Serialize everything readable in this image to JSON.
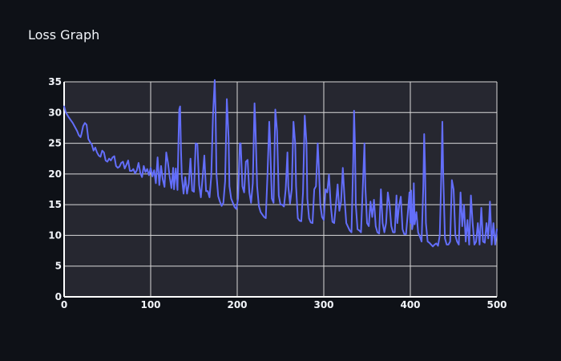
{
  "chart_data": {
    "type": "line",
    "title": "Loss Graph",
    "xlabel": "",
    "ylabel": "",
    "xlim": [
      0,
      500
    ],
    "ylim": [
      0,
      35
    ],
    "xticks": [
      0,
      100,
      200,
      300,
      400,
      500
    ],
    "yticks": [
      0,
      5,
      10,
      15,
      20,
      25,
      30,
      35
    ],
    "grid": true,
    "legend": "none",
    "colors": {
      "page_bg": "#0e1117",
      "plot_bg": "#262730",
      "grid": "#d9d9d9",
      "line": "#636efa",
      "text": "#f2f5fa"
    },
    "series": [
      {
        "points": [
          [
            0,
            31
          ],
          [
            2,
            30
          ],
          [
            5,
            29.3
          ],
          [
            10,
            28.3
          ],
          [
            15,
            27
          ],
          [
            17,
            26.3
          ],
          [
            19,
            26
          ],
          [
            20,
            26.5
          ],
          [
            22,
            27.8
          ],
          [
            24,
            28.3
          ],
          [
            26,
            28
          ],
          [
            28,
            25.7
          ],
          [
            30,
            25.2
          ],
          [
            32,
            24.8
          ],
          [
            34,
            23.8
          ],
          [
            36,
            24.3
          ],
          [
            38,
            23.5
          ],
          [
            40,
            23
          ],
          [
            42,
            22.8
          ],
          [
            44,
            23.8
          ],
          [
            46,
            23.5
          ],
          [
            48,
            22.2
          ],
          [
            50,
            22
          ],
          [
            52,
            22.5
          ],
          [
            54,
            22.2
          ],
          [
            56,
            22.7
          ],
          [
            58,
            22.9
          ],
          [
            60,
            21.3
          ],
          [
            62,
            21
          ],
          [
            64,
            21.2
          ],
          [
            66,
            21.8
          ],
          [
            68,
            22
          ],
          [
            70,
            20.9
          ],
          [
            72,
            21.5
          ],
          [
            74,
            22.2
          ],
          [
            76,
            20.5
          ],
          [
            78,
            20.5
          ],
          [
            80,
            20.8
          ],
          [
            82,
            20.1
          ],
          [
            84,
            20.6
          ],
          [
            86,
            21.8
          ],
          [
            88,
            20.2
          ],
          [
            90,
            19.5
          ],
          [
            92,
            21.3
          ],
          [
            94,
            20.3
          ],
          [
            96,
            20.8
          ],
          [
            98,
            19.8
          ],
          [
            100,
            21
          ],
          [
            102,
            19.6
          ],
          [
            104,
            20.6
          ],
          [
            106,
            18.5
          ],
          [
            108,
            22.7
          ],
          [
            110,
            18.2
          ],
          [
            112,
            21.3
          ],
          [
            114,
            19.1
          ],
          [
            116,
            17.9
          ],
          [
            118,
            23.5
          ],
          [
            120,
            21.8
          ],
          [
            122,
            19.5
          ],
          [
            124,
            17.7
          ],
          [
            126,
            21
          ],
          [
            127,
            17.5
          ],
          [
            129,
            20.9
          ],
          [
            131,
            17.4
          ],
          [
            132,
            24.5
          ],
          [
            133,
            30.5
          ],
          [
            134,
            31
          ],
          [
            135,
            24
          ],
          [
            136,
            19.5
          ],
          [
            138,
            16.8
          ],
          [
            140,
            19.5
          ],
          [
            142,
            16.8
          ],
          [
            144,
            18.4
          ],
          [
            146,
            22.5
          ],
          [
            148,
            17.3
          ],
          [
            150,
            17.1
          ],
          [
            152,
            25
          ],
          [
            154,
            24.8
          ],
          [
            156,
            18.2
          ],
          [
            158,
            16.2
          ],
          [
            160,
            19.4
          ],
          [
            162,
            23
          ],
          [
            164,
            17.2
          ],
          [
            166,
            17.2
          ],
          [
            168,
            16.2
          ],
          [
            170,
            19.6
          ],
          [
            172,
            29.5
          ],
          [
            174,
            35.3
          ],
          [
            175,
            30
          ],
          [
            176,
            20
          ],
          [
            178,
            16.4
          ],
          [
            180,
            15.5
          ],
          [
            182,
            14.8
          ],
          [
            184,
            15.3
          ],
          [
            186,
            18.8
          ],
          [
            188,
            32.2
          ],
          [
            190,
            26
          ],
          [
            191,
            18
          ],
          [
            193,
            16
          ],
          [
            195,
            15.3
          ],
          [
            197,
            14.6
          ],
          [
            199,
            14.3
          ],
          [
            201,
            16
          ],
          [
            203,
            25
          ],
          [
            204,
            25
          ],
          [
            206,
            18
          ],
          [
            208,
            17
          ],
          [
            210,
            22
          ],
          [
            212,
            22.3
          ],
          [
            214,
            17
          ],
          [
            216,
            15.3
          ],
          [
            218,
            18.5
          ],
          [
            220,
            31.5
          ],
          [
            221,
            28
          ],
          [
            223,
            18
          ],
          [
            225,
            14.8
          ],
          [
            227,
            13.8
          ],
          [
            229,
            13.4
          ],
          [
            231,
            13
          ],
          [
            233,
            12.8
          ],
          [
            235,
            20
          ],
          [
            237,
            28.5
          ],
          [
            238,
            25
          ],
          [
            240,
            16
          ],
          [
            242,
            15.3
          ],
          [
            244,
            30.5
          ],
          [
            246,
            27
          ],
          [
            248,
            16.5
          ],
          [
            250,
            15
          ],
          [
            252,
            15
          ],
          [
            254,
            14.7
          ],
          [
            256,
            17.5
          ],
          [
            258,
            23.5
          ],
          [
            259,
            18
          ],
          [
            261,
            15.2
          ],
          [
            263,
            17.5
          ],
          [
            265,
            28.5
          ],
          [
            267,
            25
          ],
          [
            268,
            18
          ],
          [
            270,
            12.8
          ],
          [
            272,
            12.4
          ],
          [
            274,
            12.3
          ],
          [
            276,
            17
          ],
          [
            278,
            29.5
          ],
          [
            280,
            25
          ],
          [
            281,
            16
          ],
          [
            283,
            12.8
          ],
          [
            285,
            12.1
          ],
          [
            287,
            12
          ],
          [
            289,
            17.5
          ],
          [
            291,
            18
          ],
          [
            293,
            25
          ],
          [
            294,
            22
          ],
          [
            296,
            15
          ],
          [
            298,
            13
          ],
          [
            300,
            12.5
          ],
          [
            302,
            17.5
          ],
          [
            304,
            17
          ],
          [
            306,
            19.9
          ],
          [
            308,
            15
          ],
          [
            310,
            12.2
          ],
          [
            312,
            12
          ],
          [
            314,
            15
          ],
          [
            316,
            18.3
          ],
          [
            318,
            14
          ],
          [
            320,
            15.5
          ],
          [
            322,
            21
          ],
          [
            324,
            16
          ],
          [
            326,
            12
          ],
          [
            328,
            11.4
          ],
          [
            330,
            10.8
          ],
          [
            332,
            10.5
          ],
          [
            334,
            22
          ],
          [
            335,
            30.3
          ],
          [
            336,
            25
          ],
          [
            337,
            15
          ],
          [
            339,
            11
          ],
          [
            341,
            10.8
          ],
          [
            343,
            10.5
          ],
          [
            345,
            17.5
          ],
          [
            347,
            25
          ],
          [
            348,
            18
          ],
          [
            350,
            12
          ],
          [
            352,
            11.5
          ],
          [
            354,
            15.5
          ],
          [
            356,
            13
          ],
          [
            358,
            15.8
          ],
          [
            360,
            11.5
          ],
          [
            362,
            10.5
          ],
          [
            364,
            10.3
          ],
          [
            366,
            17.5
          ],
          [
            368,
            12
          ],
          [
            370,
            10.5
          ],
          [
            372,
            12
          ],
          [
            374,
            17
          ],
          [
            376,
            15
          ],
          [
            378,
            11.5
          ],
          [
            380,
            10.5
          ],
          [
            382,
            10.5
          ],
          [
            384,
            16.5
          ],
          [
            385,
            12
          ],
          [
            387,
            14.8
          ],
          [
            389,
            16.3
          ],
          [
            391,
            11
          ],
          [
            393,
            10.2
          ],
          [
            395,
            10.2
          ],
          [
            397,
            13.5
          ],
          [
            399,
            17
          ],
          [
            400,
            12
          ],
          [
            401,
            17.3
          ],
          [
            402,
            11
          ],
          [
            403,
            11.8
          ],
          [
            404,
            18.5
          ],
          [
            405,
            11.8
          ],
          [
            407,
            13.8
          ],
          [
            409,
            10.5
          ],
          [
            411,
            9.8
          ],
          [
            413,
            9
          ],
          [
            415,
            18
          ],
          [
            416,
            26.5
          ],
          [
            417,
            21
          ],
          [
            418,
            12
          ],
          [
            420,
            9
          ],
          [
            422,
            8.8
          ],
          [
            424,
            8.5
          ],
          [
            426,
            8.2
          ],
          [
            428,
            8.5
          ],
          [
            430,
            8.7
          ],
          [
            432,
            8.3
          ],
          [
            434,
            10
          ],
          [
            436,
            21
          ],
          [
            437,
            28.5
          ],
          [
            438,
            20
          ],
          [
            440,
            9.5
          ],
          [
            442,
            8.5
          ],
          [
            444,
            8.5
          ],
          [
            446,
            9
          ],
          [
            448,
            19
          ],
          [
            450,
            17.5
          ],
          [
            452,
            10
          ],
          [
            454,
            9
          ],
          [
            456,
            8.5
          ],
          [
            458,
            17
          ],
          [
            460,
            11.5
          ],
          [
            462,
            15
          ],
          [
            464,
            9
          ],
          [
            466,
            12.5
          ],
          [
            468,
            8.5
          ],
          [
            470,
            16.5
          ],
          [
            472,
            12
          ],
          [
            474,
            8.5
          ],
          [
            476,
            9
          ],
          [
            478,
            12
          ],
          [
            480,
            8.5
          ],
          [
            482,
            14.5
          ],
          [
            484,
            9
          ],
          [
            486,
            8.8
          ],
          [
            488,
            12
          ],
          [
            490,
            9.5
          ],
          [
            492,
            15.5
          ],
          [
            494,
            8.5
          ],
          [
            496,
            12
          ],
          [
            498,
            8.5
          ],
          [
            500,
            11
          ]
        ]
      }
    ]
  }
}
